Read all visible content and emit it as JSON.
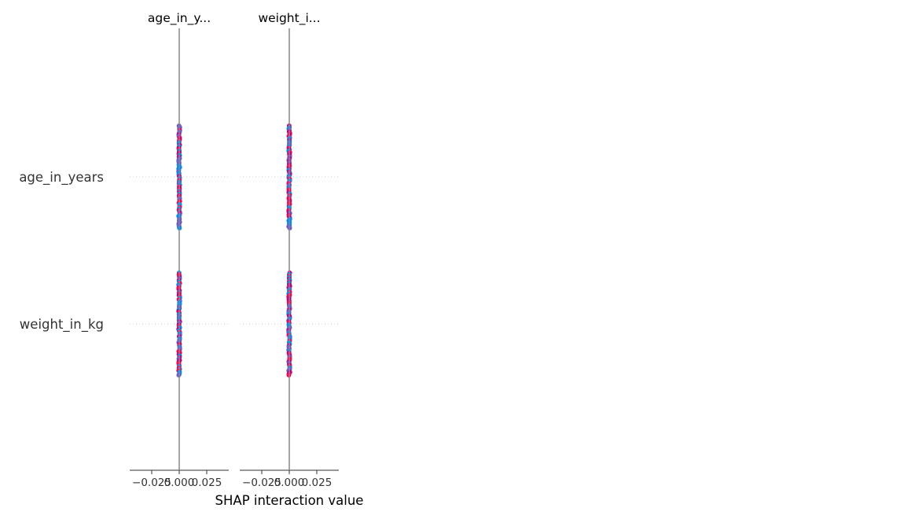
{
  "chart_data": {
    "type": "scatter",
    "subtype": "shap-interaction-summary",
    "xlabel": "SHAP interaction value",
    "features": [
      "age_in_years",
      "weight_in_kg"
    ],
    "panels": [
      {
        "title": "age_in_y...",
        "feature": "age_in_years"
      },
      {
        "title": "weight_i...",
        "feature": "weight_in_kg"
      }
    ],
    "xticks": [
      "−0.025",
      "0.000",
      "0.025"
    ],
    "xtick_values": [
      -0.025,
      0.0,
      0.025
    ],
    "xlim": [
      -0.045,
      0.045
    ],
    "grid": false,
    "zero_line": true,
    "point_colors": [
      "#ff0052",
      "#008bfb",
      "#6a5acd",
      "#c00080"
    ],
    "values": {
      "age_in_years__age_in_years": 0.0,
      "age_in_years__weight_in_kg": 0.0,
      "weight_in_kg__age_in_years": 0.0,
      "weight_in_kg__weight_in_kg": 0.0
    }
  }
}
